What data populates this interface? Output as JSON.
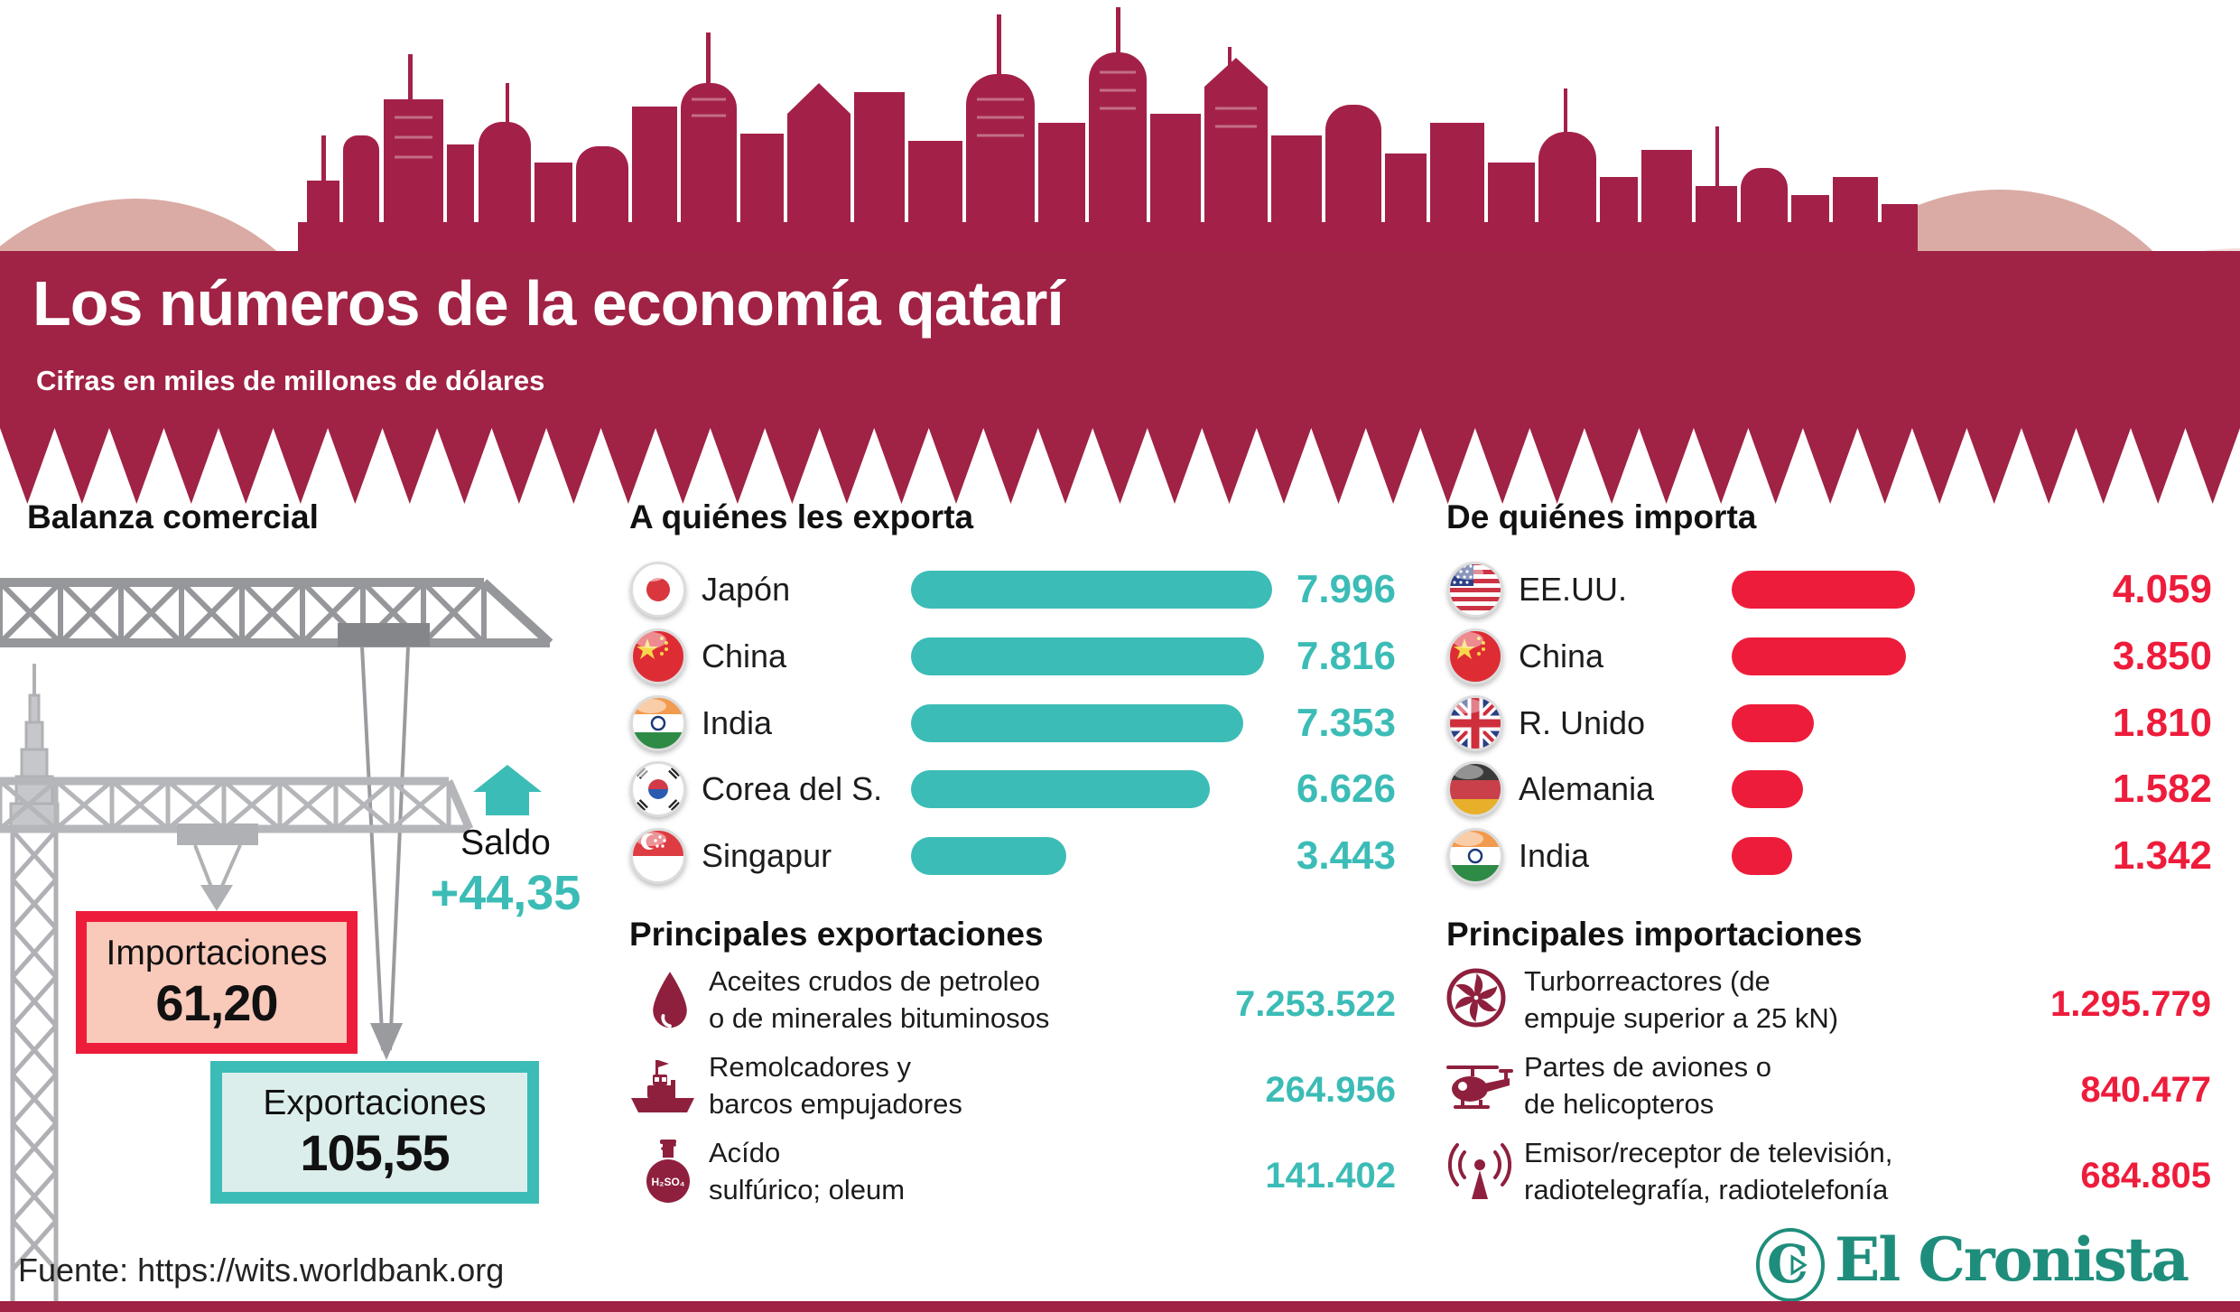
{
  "header": {
    "title": "Los números de la economía qatarí",
    "subtitle": "Cifras en miles de millones de dólares"
  },
  "balanza": {
    "heading": "Balanza comercial",
    "saldo_label": "Saldo",
    "saldo_value": "+44,35",
    "importaciones": {
      "label": "Importaciones",
      "value": "61,20"
    },
    "exportaciones": {
      "label": "Exportaciones",
      "value": "105,55"
    }
  },
  "exporta": {
    "heading": "A quiénes les exporta",
    "rows": [
      {
        "country": "Japón",
        "value": "7.996"
      },
      {
        "country": "China",
        "value": "7.816"
      },
      {
        "country": "India",
        "value": "7.353"
      },
      {
        "country": "Corea del S.",
        "value": "6.626"
      },
      {
        "country": "Singapur",
        "value": "3.443"
      }
    ]
  },
  "importa": {
    "heading": "De quiénes importa",
    "rows": [
      {
        "country": "EE.UU.",
        "value": "4.059"
      },
      {
        "country": "China",
        "value": "3.850"
      },
      {
        "country": "R. Unido",
        "value": "1.810"
      },
      {
        "country": "Alemania",
        "value": "1.582"
      },
      {
        "country": "India",
        "value": "1.342"
      }
    ]
  },
  "prin_exp": {
    "heading": "Principales exportaciones",
    "items": [
      {
        "line1": "Aceites crudos de petroleo",
        "line2": "o de minerales bituminosos",
        "value": "7.253.522",
        "icon": "oil-drop-icon"
      },
      {
        "line1": "Remolcadores y",
        "line2": "barcos empujadores",
        "value": "264.956",
        "icon": "tugboat-icon"
      },
      {
        "line1": "Acído",
        "line2": "sulfúrico; oleum",
        "value": "141.402",
        "icon": "acid-flask-icon"
      }
    ]
  },
  "prin_imp": {
    "heading": "Principales importaciones",
    "items": [
      {
        "line1": "Turborreactores (de",
        "line2": "empuje superior a 25 kN)",
        "value": "1.295.779",
        "icon": "turbojet-icon"
      },
      {
        "line1": "Partes de aviones o",
        "line2": "de helicopteros",
        "value": "840.477",
        "icon": "helicopter-icon"
      },
      {
        "line1": "Emisor/receptor de televisión,",
        "line2": "radiotelegrafía, radiotelefonía",
        "value": "684.805",
        "icon": "radio-antenna-icon"
      }
    ]
  },
  "footer": {
    "source": "Fuente: https://wits.worldbank.org",
    "brand": "El Cronista",
    "brand_initial": "C"
  },
  "colors": {
    "banner": "#a02244",
    "skyline": "#a32148",
    "teal": "#3cbcb6",
    "red": "#ee1c3b",
    "icon_maroon": "#8e203e",
    "background": "#eef2f7",
    "brand_teal": "#1f8d7c",
    "import_box_fill": "#f9c9ba",
    "export_box_fill": "#dceeec"
  },
  "chart_data": [
    {
      "type": "bar",
      "title": "A quiénes les exporta",
      "orientation": "horizontal",
      "categories": [
        "Japón",
        "China",
        "India",
        "Corea del S.",
        "Singapur"
      ],
      "values": [
        7996,
        7816,
        7353,
        6626,
        3443
      ],
      "value_labels": [
        "7.996",
        "7.816",
        "7.353",
        "6.626",
        "3.443"
      ],
      "bar_color": "#3cbcb6",
      "xlim": [
        0,
        8000
      ]
    },
    {
      "type": "bar",
      "title": "De quiénes importa",
      "orientation": "horizontal",
      "categories": [
        "EE.UU.",
        "China",
        "R. Unido",
        "Alemania",
        "India"
      ],
      "values": [
        4059,
        3850,
        1810,
        1582,
        1342
      ],
      "value_labels": [
        "4.059",
        "3.850",
        "1.810",
        "1.582",
        "1.342"
      ],
      "bar_color": "#ee1c3b",
      "xlim": [
        0,
        8000
      ]
    },
    {
      "type": "table",
      "title": "Balanza comercial (miles de millones de dólares)",
      "rows": [
        [
          "Exportaciones",
          "105,55"
        ],
        [
          "Importaciones",
          "61,20"
        ],
        [
          "Saldo",
          "+44,35"
        ]
      ]
    },
    {
      "type": "table",
      "title": "Principales exportaciones",
      "rows": [
        [
          "Aceites crudos de petroleo o de minerales bituminosos",
          "7.253.522"
        ],
        [
          "Remolcadores y barcos empujadores",
          "264.956"
        ],
        [
          "Acído sulfúrico; oleum",
          "141.402"
        ]
      ]
    },
    {
      "type": "table",
      "title": "Principales importaciones",
      "rows": [
        [
          "Turborreactores (de empuje superior a 25 kN)",
          "1.295.779"
        ],
        [
          "Partes de aviones o de helicopteros",
          "840.477"
        ],
        [
          "Emisor/receptor de televisión, radiotelegrafía, radiotelefonía",
          "684.805"
        ]
      ]
    }
  ]
}
